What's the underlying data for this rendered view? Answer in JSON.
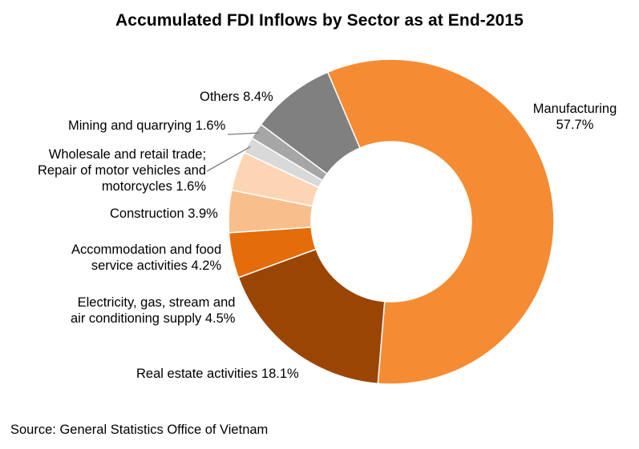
{
  "title": "Accumulated FDI Inflows by Sector as at End-2015",
  "source": "Source: General Statistics Office of Vietnam",
  "chart_data": {
    "type": "pie",
    "variant": "donut",
    "title": "Accumulated FDI Inflows by Sector as at End-2015",
    "unit": "%",
    "slices": [
      {
        "name": "Manufacturing",
        "value": 57.7,
        "color": "#F58C33",
        "label_lines": [
          "Manufacturing",
          "57.7%"
        ]
      },
      {
        "name": "Real estate activities",
        "value": 18.1,
        "color": "#9B4505",
        "label_lines": [
          "Real estate activities 18.1%"
        ]
      },
      {
        "name": "Electricity, gas, stream and air conditioning supply",
        "value": 4.5,
        "color": "#E46C0A",
        "label_lines": [
          "Electricity, gas, stream and",
          "air conditioning supply 4.5%"
        ]
      },
      {
        "name": "Accommodation and food service activities",
        "value": 4.2,
        "color": "#F8BF8D",
        "label_lines": [
          "Accommodation and food",
          "service activities 4.2%"
        ]
      },
      {
        "name": "Construction",
        "value": 3.9,
        "color": "#FCD5B5",
        "label_lines": [
          "Construction 3.9%"
        ]
      },
      {
        "name": "Wholesale and retail trade; Repair of motor vehicles and motorcycles",
        "value": 1.6,
        "color": "#D9D9D9",
        "label_lines": [
          "Wholesale and retail trade;",
          "Repair of motor vehicles and",
          "motorcycles 1.6%"
        ]
      },
      {
        "name": "Mining and quarrying",
        "value": 1.6,
        "color": "#A6A6A6",
        "label_lines": [
          "Mining and quarrying 1.6%"
        ]
      },
      {
        "name": "Others",
        "value": 8.4,
        "color": "#808080",
        "label_lines": [
          "Others 8.4%"
        ]
      }
    ]
  }
}
